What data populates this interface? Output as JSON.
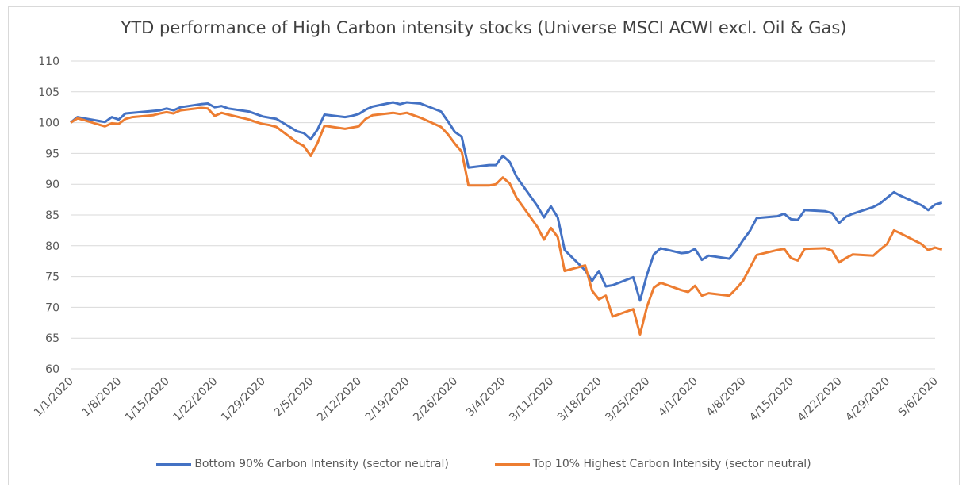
{
  "chart_data": {
    "type": "line",
    "title": "YTD performance of High Carbon intensity stocks (Universe MSCI ACWI excl. Oil & Gas)",
    "xlabel": "",
    "ylabel": "",
    "ylim": [
      60,
      110
    ],
    "yticks": [
      60,
      65,
      70,
      75,
      80,
      85,
      90,
      95,
      100,
      105,
      110
    ],
    "xticks": [
      "1/1/2020",
      "1/8/2020",
      "1/15/2020",
      "1/22/2020",
      "1/29/2020",
      "2/5/2020",
      "2/12/2020",
      "2/19/2020",
      "2/26/2020",
      "3/4/2020",
      "3/11/2020",
      "3/18/2020",
      "3/25/2020",
      "4/1/2020",
      "4/8/2020",
      "4/15/2020",
      "4/22/2020",
      "4/29/2020",
      "5/6/2020"
    ],
    "grid": "horizontal",
    "legend_position": "bottom",
    "x": [
      "1/1/2020",
      "1/2/2020",
      "1/3/2020",
      "1/6/2020",
      "1/7/2020",
      "1/8/2020",
      "1/9/2020",
      "1/10/2020",
      "1/13/2020",
      "1/14/2020",
      "1/15/2020",
      "1/16/2020",
      "1/17/2020",
      "1/20/2020",
      "1/21/2020",
      "1/22/2020",
      "1/23/2020",
      "1/24/2020",
      "1/27/2020",
      "1/28/2020",
      "1/29/2020",
      "1/30/2020",
      "1/31/2020",
      "2/3/2020",
      "2/4/2020",
      "2/5/2020",
      "2/6/2020",
      "2/7/2020",
      "2/10/2020",
      "2/11/2020",
      "2/12/2020",
      "2/13/2020",
      "2/14/2020",
      "2/17/2020",
      "2/18/2020",
      "2/19/2020",
      "2/20/2020",
      "2/21/2020",
      "2/24/2020",
      "2/25/2020",
      "2/26/2020",
      "2/27/2020",
      "2/28/2020",
      "3/2/2020",
      "3/3/2020",
      "3/4/2020",
      "3/5/2020",
      "3/6/2020",
      "3/9/2020",
      "3/10/2020",
      "3/11/2020",
      "3/12/2020",
      "3/13/2020",
      "3/16/2020",
      "3/17/2020",
      "3/18/2020",
      "3/19/2020",
      "3/20/2020",
      "3/23/2020",
      "3/24/2020",
      "3/25/2020",
      "3/26/2020",
      "3/27/2020",
      "3/30/2020",
      "3/31/2020",
      "4/1/2020",
      "4/2/2020",
      "4/3/2020",
      "4/6/2020",
      "4/7/2020",
      "4/8/2020",
      "4/9/2020",
      "4/10/2020",
      "4/13/2020",
      "4/14/2020",
      "4/15/2020",
      "4/16/2020",
      "4/17/2020",
      "4/20/2020",
      "4/21/2020",
      "4/22/2020",
      "4/23/2020",
      "4/24/2020",
      "4/27/2020",
      "4/28/2020",
      "4/29/2020",
      "4/30/2020",
      "5/1/2020",
      "5/4/2020",
      "5/5/2020",
      "5/6/2020",
      "5/7/2020"
    ],
    "series": [
      {
        "name": "Bottom 90% Carbon Intensity (sector neutral)",
        "color": "#4472c4",
        "values": [
          100.0,
          100.9,
          100.7,
          100.1,
          100.9,
          100.5,
          101.5,
          101.6,
          101.9,
          102.0,
          102.3,
          102.0,
          102.5,
          103.0,
          103.1,
          102.5,
          102.7,
          102.3,
          101.8,
          101.4,
          101.0,
          100.8,
          100.6,
          98.6,
          98.3,
          97.3,
          98.9,
          101.3,
          100.9,
          101.1,
          101.4,
          102.1,
          102.6,
          103.3,
          103.0,
          103.3,
          103.2,
          103.1,
          101.8,
          100.2,
          98.5,
          97.7,
          92.7,
          93.1,
          93.1,
          94.6,
          93.6,
          91.2,
          86.5,
          84.6,
          86.4,
          84.6,
          79.3,
          76.0,
          74.3,
          75.9,
          73.4,
          73.6,
          74.9,
          71.1,
          75.3,
          78.6,
          79.6,
          78.8,
          78.9,
          79.5,
          77.7,
          78.4,
          77.9,
          79.2,
          80.9,
          82.4,
          84.5,
          84.8,
          85.2,
          84.3,
          84.2,
          85.8,
          85.6,
          85.3,
          83.7,
          84.7,
          85.2,
          86.3,
          86.9,
          87.8,
          88.7,
          88.1,
          86.6,
          85.8,
          86.7,
          87.0
        ]
      },
      {
        "name": "Top 10% Highest Carbon Intensity (sector neutral)",
        "color": "#ed7d31",
        "values": [
          100.0,
          100.7,
          100.4,
          99.4,
          99.9,
          99.8,
          100.6,
          100.9,
          101.2,
          101.5,
          101.7,
          101.5,
          102.0,
          102.4,
          102.3,
          101.1,
          101.6,
          101.3,
          100.5,
          100.1,
          99.8,
          99.6,
          99.3,
          96.8,
          96.2,
          94.6,
          96.7,
          99.5,
          99.0,
          99.2,
          99.4,
          100.6,
          101.2,
          101.6,
          101.4,
          101.6,
          101.2,
          100.8,
          99.3,
          98.1,
          96.6,
          95.3,
          89.8,
          89.8,
          90.0,
          91.1,
          90.1,
          87.8,
          83.1,
          81.0,
          82.9,
          81.4,
          75.9,
          76.8,
          72.7,
          71.3,
          71.9,
          68.5,
          69.7,
          65.6,
          70.1,
          73.2,
          74.0,
          72.8,
          72.5,
          73.5,
          71.9,
          72.3,
          71.9,
          73.0,
          74.3,
          76.4,
          78.5,
          79.3,
          79.5,
          78.0,
          77.6,
          79.5,
          79.6,
          79.2,
          77.3,
          78.0,
          78.6,
          78.4,
          79.4,
          80.3,
          82.5,
          82.0,
          80.3,
          79.3,
          79.7,
          79.4
        ]
      }
    ]
  }
}
